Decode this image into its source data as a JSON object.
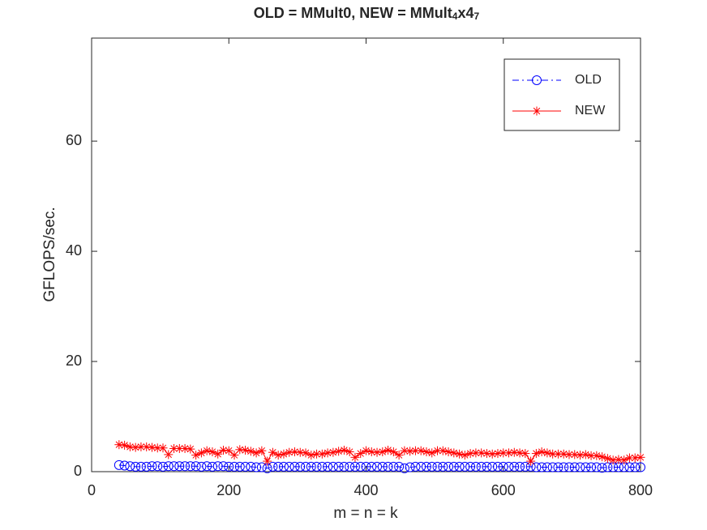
{
  "chart_data": {
    "type": "line",
    "title": [
      "OLD = MMult0, NEW = MMult",
      "4",
      "x4",
      "7"
    ],
    "xlabel": "m = n = k",
    "ylabel": "GFLOPS/sec.",
    "x": [
      40,
      48,
      56,
      64,
      72,
      80,
      88,
      96,
      104,
      112,
      120,
      128,
      136,
      144,
      152,
      160,
      168,
      176,
      184,
      192,
      200,
      208,
      216,
      224,
      232,
      240,
      248,
      256,
      264,
      272,
      280,
      288,
      296,
      304,
      312,
      320,
      328,
      336,
      344,
      352,
      360,
      368,
      376,
      384,
      392,
      400,
      408,
      416,
      424,
      432,
      440,
      448,
      456,
      464,
      472,
      480,
      488,
      496,
      504,
      512,
      520,
      528,
      536,
      544,
      552,
      560,
      568,
      576,
      584,
      592,
      600,
      608,
      616,
      624,
      632,
      640,
      648,
      656,
      664,
      672,
      680,
      688,
      696,
      704,
      712,
      720,
      728,
      736,
      744,
      752,
      760,
      768,
      776,
      784,
      792,
      800
    ],
    "series": [
      {
        "name": "OLD",
        "color": "#0000ff",
        "line": "dashdot",
        "marker": "circle",
        "values": [
          1.2,
          1.1,
          1.0,
          0.9,
          0.9,
          0.9,
          1.0,
          1.0,
          0.9,
          1.0,
          1.0,
          1.0,
          1.0,
          1.0,
          1.0,
          0.9,
          1.0,
          0.9,
          1.0,
          1.0,
          0.9,
          0.9,
          0.9,
          0.9,
          0.9,
          0.8,
          0.8,
          0.6,
          0.9,
          0.9,
          0.9,
          0.9,
          0.9,
          0.9,
          0.9,
          0.9,
          0.9,
          0.9,
          0.9,
          0.9,
          0.9,
          0.9,
          0.9,
          0.9,
          0.9,
          0.9,
          0.9,
          0.9,
          0.9,
          0.9,
          0.9,
          0.9,
          0.6,
          0.8,
          0.9,
          0.9,
          0.9,
          0.9,
          0.9,
          0.9,
          0.9,
          0.9,
          0.9,
          0.9,
          0.9,
          0.9,
          0.9,
          0.9,
          0.9,
          0.9,
          0.9,
          0.9,
          0.9,
          0.9,
          0.9,
          0.9,
          0.8,
          0.8,
          0.8,
          0.8,
          0.8,
          0.8,
          0.8,
          0.8,
          0.8,
          0.8,
          0.8,
          0.8,
          0.7,
          0.8,
          0.8,
          0.8,
          0.8,
          0.8,
          0.8,
          0.8
        ]
      },
      {
        "name": "NEW",
        "color": "#ff0000",
        "line": "solid",
        "marker": "asterisk",
        "values": [
          4.9,
          4.8,
          4.5,
          4.4,
          4.5,
          4.5,
          4.4,
          4.3,
          4.3,
          3.1,
          4.2,
          4.2,
          4.2,
          4.1,
          3.0,
          3.4,
          3.8,
          3.6,
          3.2,
          3.9,
          3.8,
          3.0,
          4.0,
          3.9,
          3.7,
          3.4,
          3.8,
          1.9,
          3.5,
          3.0,
          3.2,
          3.5,
          3.6,
          3.5,
          3.4,
          3.0,
          3.2,
          3.2,
          3.4,
          3.5,
          3.7,
          3.9,
          3.6,
          2.6,
          3.3,
          3.8,
          3.6,
          3.5,
          3.6,
          3.9,
          3.6,
          3.0,
          3.8,
          3.7,
          3.8,
          3.8,
          3.6,
          3.4,
          3.8,
          3.8,
          3.6,
          3.4,
          3.2,
          3.0,
          3.3,
          3.4,
          3.4,
          3.3,
          3.2,
          3.3,
          3.4,
          3.4,
          3.5,
          3.4,
          3.3,
          1.9,
          3.3,
          3.6,
          3.4,
          3.2,
          3.2,
          3.2,
          3.1,
          3.1,
          3.0,
          3.1,
          2.9,
          2.9,
          2.7,
          2.4,
          2.1,
          2.2,
          2.1,
          2.5,
          2.5,
          2.6
        ]
      }
    ],
    "xlim": [
      0,
      800
    ],
    "xticks": [
      0,
      200,
      400,
      600,
      800
    ],
    "ylim": [
      0,
      78.7
    ],
    "yticks": [
      0,
      20,
      40,
      60
    ],
    "grid": false,
    "legend": "northeast"
  }
}
